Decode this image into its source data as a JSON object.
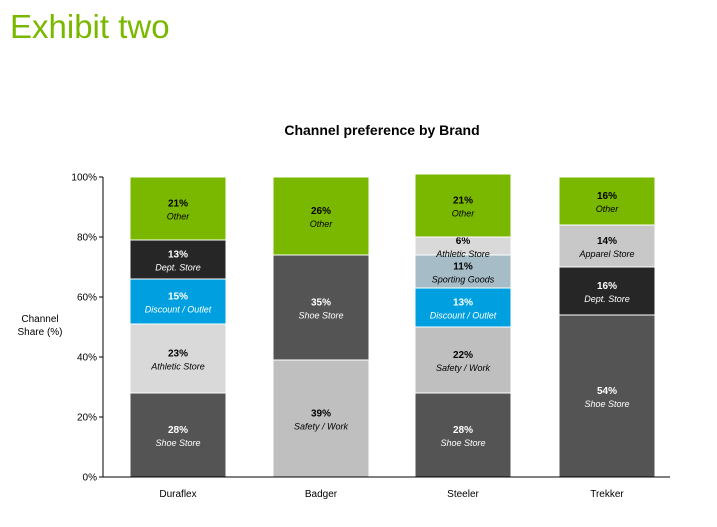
{
  "exhibit": {
    "title": "Exhibit two"
  },
  "chart_data": {
    "type": "bar",
    "stacked": true,
    "title": "Channel preference by Brand",
    "ylabel": [
      "Channel",
      "Share (%)"
    ],
    "xlabel": "",
    "ylim": [
      0,
      100
    ],
    "yticks": [
      0,
      20,
      40,
      60,
      80,
      100
    ],
    "ytick_labels": [
      "0%",
      "20%",
      "40%",
      "60%",
      "80%",
      "100%"
    ],
    "categories": [
      "Duraflex",
      "Badger",
      "Steeler",
      "Trekker"
    ],
    "colors": {
      "Shoe Store": "#545454",
      "Safety / Work": "#bfbfbf",
      "Athletic Store": "#d9d9d9",
      "Discount / Outlet": "#00a0e0",
      "Sporting Goods": "#a6bcc6",
      "Apparel Store": "#c8c8c8",
      "Dept. Store": "#262626",
      "Other": "#7ab800"
    },
    "bars": [
      {
        "category": "Duraflex",
        "segments": [
          {
            "label": "Shoe Store",
            "value": 28,
            "value_label": "28%"
          },
          {
            "label": "Athletic Store",
            "value": 23,
            "value_label": "23%"
          },
          {
            "label": "Discount / Outlet",
            "value": 15,
            "value_label": "15%"
          },
          {
            "label": "Dept. Store",
            "value": 13,
            "value_label": "13%"
          },
          {
            "label": "Other",
            "value": 21,
            "value_label": "21%"
          }
        ]
      },
      {
        "category": "Badger",
        "segments": [
          {
            "label": "Safety / Work",
            "value": 39,
            "value_label": "39%"
          },
          {
            "label": "Shoe Store",
            "value": 35,
            "value_label": "35%"
          },
          {
            "label": "Other",
            "value": 26,
            "value_label": "26%"
          }
        ]
      },
      {
        "category": "Steeler",
        "segments": [
          {
            "label": "Shoe Store",
            "value": 28,
            "value_label": "28%"
          },
          {
            "label": "Safety / Work",
            "value": 22,
            "value_label": "22%"
          },
          {
            "label": "Discount / Outlet",
            "value": 13,
            "value_label": "13%"
          },
          {
            "label": "Sporting Goods",
            "value": 11,
            "value_label": "11%"
          },
          {
            "label": "Athletic Store",
            "value": 6,
            "value_label": "6%"
          },
          {
            "label": "Other",
            "value": 21,
            "value_label": "21%"
          }
        ]
      },
      {
        "category": "Trekker",
        "segments": [
          {
            "label": "Shoe Store",
            "value": 54,
            "value_label": "54%"
          },
          {
            "label": "Dept. Store",
            "value": 16,
            "value_label": "16%"
          },
          {
            "label": "Apparel Store",
            "value": 14,
            "value_label": "14%"
          },
          {
            "label": "Other",
            "value": 16,
            "value_label": "16%"
          }
        ]
      }
    ]
  }
}
